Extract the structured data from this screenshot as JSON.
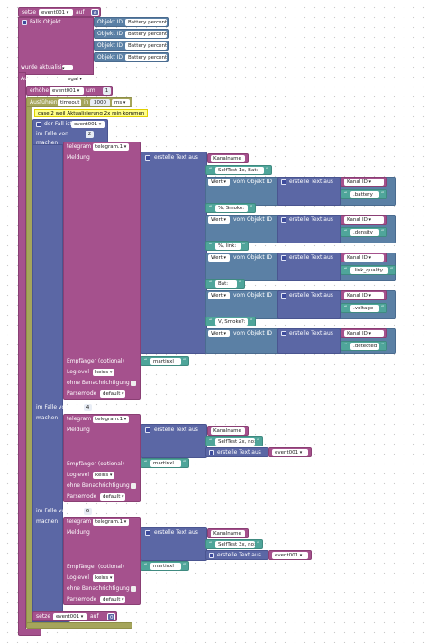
{
  "colors": {
    "pink": "#a5518d",
    "navy": "#5b67a5",
    "teal": "#4fa59a",
    "comment_bg": "#ffff88"
  },
  "top_set": {
    "label": "setze",
    "var": "event001",
    "op": "auf",
    "value": "0"
  },
  "if_block": {
    "label": "Falls Objekt",
    "object_label": "Objekt ID",
    "objects": [
      "Battery percent",
      "Battery percent",
      "Battery percent",
      "Battery percent"
    ]
  },
  "updated_label": "wurde aktualisiert",
  "trigger": {
    "label": "Auslösung durch",
    "value": "egal"
  },
  "increase": {
    "label": "erhöhe",
    "var": "event001",
    "op": "um",
    "value": "1"
  },
  "timeout": {
    "label": "Ausführen",
    "name": "timeout",
    "in": "in",
    "ms": "3000",
    "unit": "ms"
  },
  "comment": "case 2 weil Aktualisierung 2x rein kommen",
  "switch": {
    "label": "der Fall ist",
    "var": "event001"
  },
  "cases": [
    {
      "label": "im Falle von",
      "value": "2",
      "do": "machen"
    },
    {
      "label": "im Falle von",
      "value": "4",
      "do": "machen"
    },
    {
      "label": "im Falle von",
      "value": "6",
      "do": "machen"
    }
  ],
  "telegram": {
    "label": "telegram",
    "instance": "telegram.1",
    "message_label": "Meldung",
    "create_text": "erstelle Text aus",
    "recipient_label": "Empfänger (optional)",
    "recipient": "martinxl",
    "loglevel_label": "Loglevel",
    "loglevel": "keins",
    "no_notify_label": "ohne Benachrichtigung",
    "parse_label": "Parsemode",
    "parse": "default"
  },
  "text1": {
    "kanalname": "Kanalname",
    "parts": [
      {
        "txt": "SelfTest 1x, Bat: ",
        "prop": ".battery"
      },
      {
        "txt": "%, Smoke: ",
        "prop": ".density"
      },
      {
        "txt": "%, link: ",
        "prop": ".link_quality"
      },
      {
        "txt": " Bat: ",
        "prop": ".voltage"
      },
      {
        "txt": "V, Smoke?: ",
        "prop": ".detected"
      }
    ],
    "value_label": "Wert",
    "from_obj": "vom Objekt ID",
    "kanal_id": "Kanal ID"
  },
  "text2": {
    "kanalname": "Kanalname",
    "txt": "SelfTest 2x, no: ",
    "var": "event001"
  },
  "text3": {
    "kanalname": "Kanalname",
    "txt": "SelfTest 3x, no: ",
    "var": "event001"
  },
  "bottom_set": {
    "label": "setze",
    "var": "event001",
    "op": "auf",
    "value": "0"
  }
}
